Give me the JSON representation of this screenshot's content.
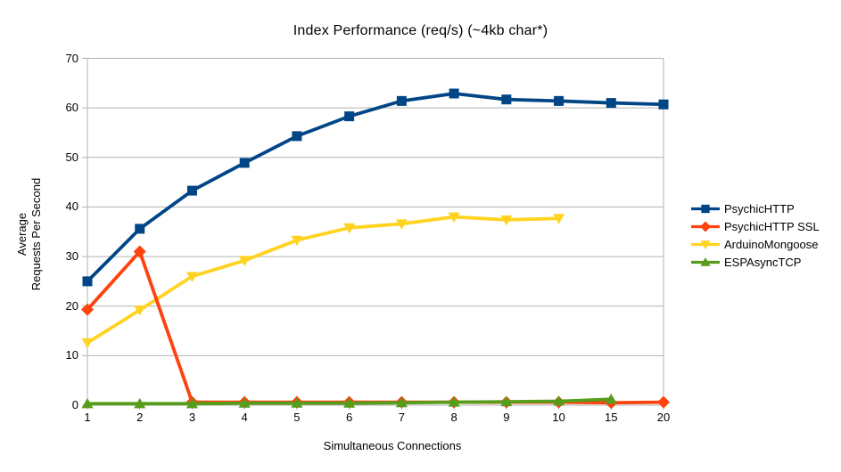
{
  "chart_data": {
    "type": "line",
    "title": "Index Performance (req/s) (~4kb char*)",
    "xlabel": "Simultaneous Connections",
    "ylabel_lines": [
      "Average",
      "Requests Per Second"
    ],
    "categories": [
      "1",
      "2",
      "3",
      "4",
      "5",
      "6",
      "7",
      "8",
      "9",
      "10",
      "15",
      "20"
    ],
    "y_ticks": [
      0,
      10,
      20,
      30,
      40,
      50,
      60,
      70
    ],
    "ylim": [
      0,
      70
    ],
    "grid": "horizontal",
    "legend_position": "right",
    "colors": {
      "grid": "#b3b3b3",
      "axis": "#b3b3b3",
      "text": "#000000",
      "background": "#ffffff"
    },
    "series": [
      {
        "name": "PsychicHTTP",
        "color": "#004586",
        "marker": "square",
        "values": [
          25.0,
          35.6,
          43.3,
          48.9,
          54.3,
          58.3,
          61.4,
          62.9,
          61.7,
          61.4,
          61.0,
          60.7
        ]
      },
      {
        "name": "PsychicHTTP SSL",
        "color": "#FF420E",
        "marker": "diamond",
        "values": [
          19.3,
          31.0,
          0.6,
          0.6,
          0.6,
          0.6,
          0.6,
          0.6,
          0.6,
          0.6,
          0.5,
          0.6
        ]
      },
      {
        "name": "ArduinoMongoose",
        "color": "#FFD320",
        "marker": "triangle-down",
        "values": [
          12.6,
          19.2,
          26.0,
          29.2,
          33.3,
          35.8,
          36.6,
          38.0,
          37.4,
          37.7
        ]
      },
      {
        "name": "ESPAsyncTCP",
        "color": "#579D1C",
        "marker": "triangle-up",
        "values": [
          0.3,
          0.3,
          0.3,
          0.4,
          0.4,
          0.4,
          0.5,
          0.6,
          0.7,
          0.8,
          1.2
        ]
      }
    ],
    "draw_order": [
      0,
      2,
      1,
      3
    ]
  }
}
